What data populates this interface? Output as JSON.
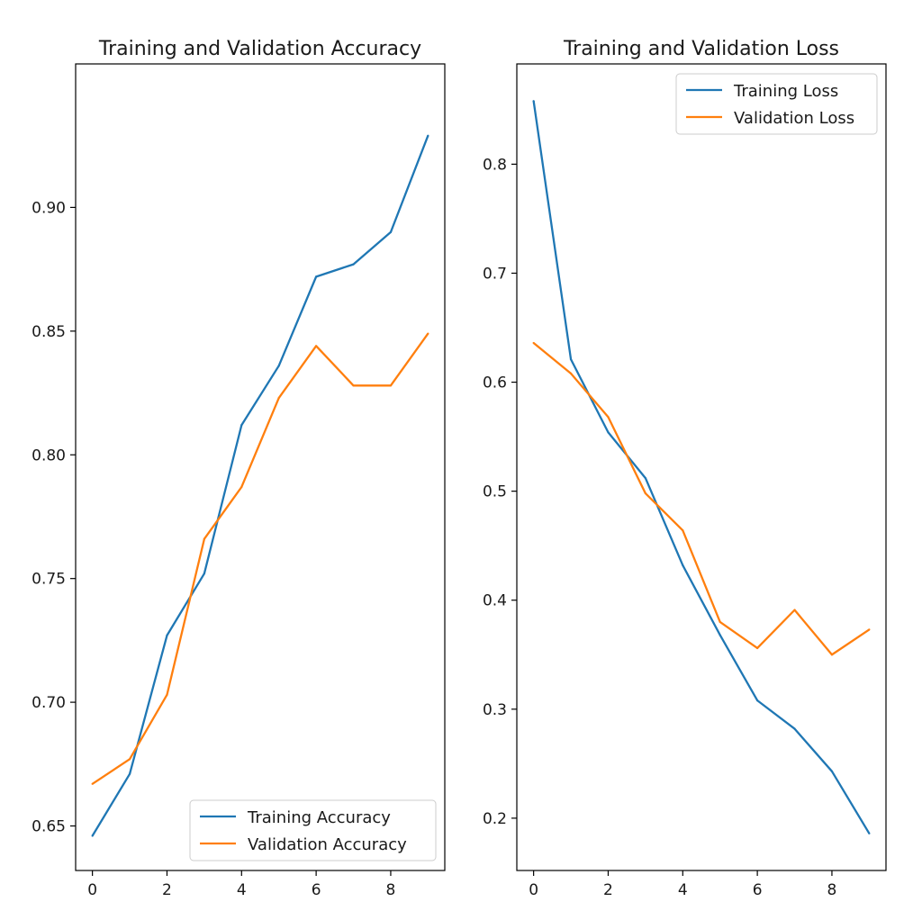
{
  "chart_data": [
    {
      "type": "line",
      "title": "Training and Validation Accuracy",
      "xlabel": "",
      "ylabel": "",
      "xlim": [
        -0.45,
        9.45
      ],
      "ylim": [
        0.632,
        0.958
      ],
      "xticks": [
        0,
        2,
        4,
        6,
        8
      ],
      "xtick_labels": [
        "0",
        "2",
        "4",
        "6",
        "8"
      ],
      "yticks": [
        0.65,
        0.7,
        0.75,
        0.8,
        0.85,
        0.9
      ],
      "ytick_labels": [
        "0.65",
        "0.70",
        "0.75",
        "0.80",
        "0.85",
        "0.90"
      ],
      "grid": false,
      "legend_position": "lower-right",
      "x": [
        0,
        1,
        2,
        3,
        4,
        5,
        6,
        7,
        8,
        9
      ],
      "series": [
        {
          "name": "Training Accuracy",
          "color": "#1f77b4",
          "values": [
            0.646,
            0.671,
            0.727,
            0.752,
            0.812,
            0.836,
            0.872,
            0.877,
            0.89,
            0.929
          ]
        },
        {
          "name": "Validation Accuracy",
          "color": "#ff7f0e",
          "values": [
            0.667,
            0.677,
            0.703,
            0.766,
            0.787,
            0.823,
            0.844,
            0.828,
            0.828,
            0.849
          ]
        }
      ]
    },
    {
      "type": "line",
      "title": "Training and Validation Loss",
      "xlabel": "",
      "ylabel": "",
      "xlim": [
        -0.45,
        9.45
      ],
      "ylim": [
        0.152,
        0.892
      ],
      "xticks": [
        0,
        2,
        4,
        6,
        8
      ],
      "xtick_labels": [
        "0",
        "2",
        "4",
        "6",
        "8"
      ],
      "yticks": [
        0.2,
        0.3,
        0.4,
        0.5,
        0.6,
        0.7,
        0.8
      ],
      "ytick_labels": [
        "0.2",
        "0.3",
        "0.4",
        "0.5",
        "0.6",
        "0.7",
        "0.8"
      ],
      "grid": false,
      "legend_position": "upper-right",
      "x": [
        0,
        1,
        2,
        3,
        4,
        5,
        6,
        7,
        8,
        9
      ],
      "series": [
        {
          "name": "Training Loss",
          "color": "#1f77b4",
          "values": [
            0.858,
            0.621,
            0.554,
            0.512,
            0.432,
            0.368,
            0.308,
            0.282,
            0.243,
            0.186
          ]
        },
        {
          "name": "Validation Loss",
          "color": "#ff7f0e",
          "values": [
            0.636,
            0.608,
            0.568,
            0.498,
            0.464,
            0.38,
            0.356,
            0.391,
            0.35,
            0.373
          ]
        }
      ]
    }
  ]
}
